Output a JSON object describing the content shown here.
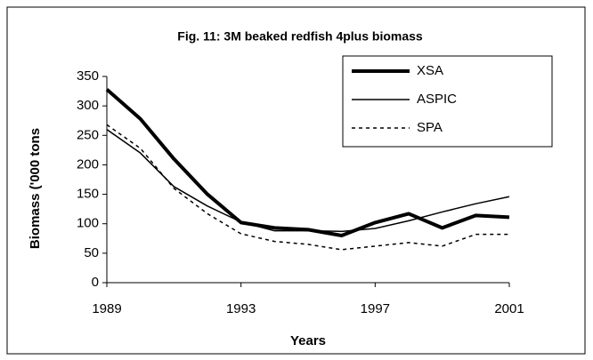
{
  "chart_data": {
    "type": "line",
    "title": "Fig. 11: 3M beaked redfish 4plus biomass",
    "x_label": "Years",
    "y_label": "Biomass ('000 tons",
    "x": [
      1989,
      1990,
      1991,
      1992,
      1993,
      1994,
      1995,
      1996,
      1997,
      1998,
      1999,
      2000,
      2001
    ],
    "series": [
      {
        "name": "XSA",
        "color": "#000000",
        "linewidth": 4,
        "linestyle": "solid",
        "values": [
          328,
          278,
          210,
          150,
          102,
          93,
          90,
          80,
          102,
          117,
          93,
          114,
          111
        ]
      },
      {
        "name": "ASPIC",
        "color": "#000000",
        "linewidth": 1.5,
        "linestyle": "solid",
        "values": [
          260,
          220,
          163,
          130,
          103,
          88,
          88,
          87,
          92,
          105,
          120,
          134,
          146
        ]
      },
      {
        "name": "SPA",
        "color": "#000000",
        "linewidth": 1.5,
        "linestyle": "dashed",
        "values": [
          268,
          228,
          160,
          117,
          83,
          70,
          65,
          56,
          62,
          68,
          62,
          82,
          82
        ]
      }
    ],
    "xlim": [
      1989,
      2001
    ],
    "xticks": [
      1989,
      1993,
      1997,
      2001
    ],
    "ylim": [
      0,
      350
    ],
    "yticks": [
      0,
      50,
      100,
      150,
      200,
      250,
      300,
      350
    ],
    "grid": false,
    "legend": "upper right"
  }
}
